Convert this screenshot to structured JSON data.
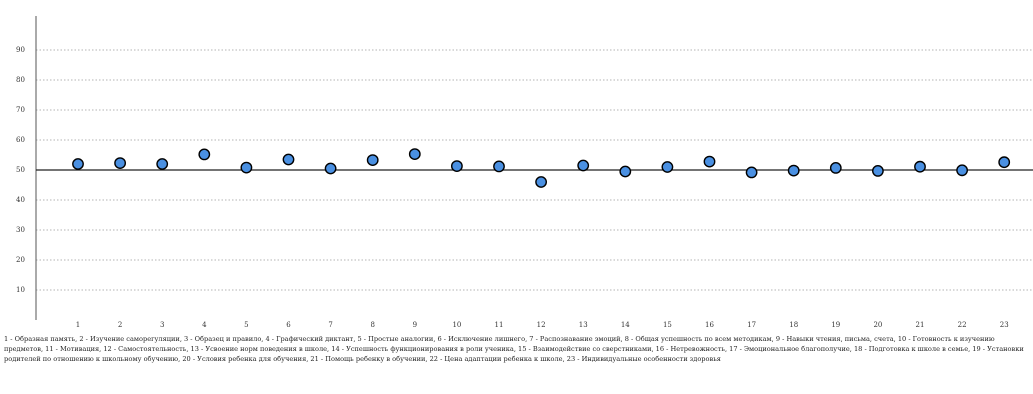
{
  "chart_data": {
    "type": "scatter",
    "x": [
      1,
      2,
      3,
      4,
      5,
      6,
      7,
      8,
      9,
      10,
      11,
      12,
      13,
      14,
      15,
      16,
      17,
      18,
      19,
      20,
      21,
      22,
      23
    ],
    "values": [
      52,
      52.3,
      52,
      55.2,
      50.8,
      53.5,
      50.5,
      53.3,
      55.3,
      51.3,
      51.2,
      46,
      51.5,
      49.5,
      51,
      52.8,
      49.2,
      49.8,
      50.7,
      49.7,
      51.1,
      49.9,
      52.6
    ],
    "reference_line": 50,
    "ylim": [
      0,
      100
    ],
    "yticks": [
      10,
      20,
      30,
      40,
      50,
      60,
      70,
      80,
      90
    ],
    "grid": "horizontal-dotted",
    "marker_color": "#4a90e2",
    "marker_edge_color": "#000000",
    "title": "",
    "xlabel": "",
    "ylabel": ""
  },
  "caption": "1 - Образная память, 2 - Изучение саморегуляции, 3 - Образец и правило, 4 - Графический диктант, 5 - Простые аналогии, 6 - Исключение лишнего, 7 - Распознавание эмоций, 8 - Общая успешность по всем методикам, 9 - Навыки чтения, письма, счета, 10 - Готовность к изучению предметов, 11 - Мотивация, 12 - Самостоятельность, 13 - Усвоение норм поведения в школе, 14 - Успешность функционирования в роли ученика, 15 - Взаимодействие со сверстниками, 16 - Нетревожность, 17 - Эмоциональное благополучие, 18 - Подготовка к школе в семье, 19 - Установки родителей по отношению к школьному обучению, 20 - Условия ребенка для обучения, 21 - Помощь ребенку в обучении, 22 - Цена адаптации ребенка к школе, 23 - Индивидуальные особенности здоровья"
}
